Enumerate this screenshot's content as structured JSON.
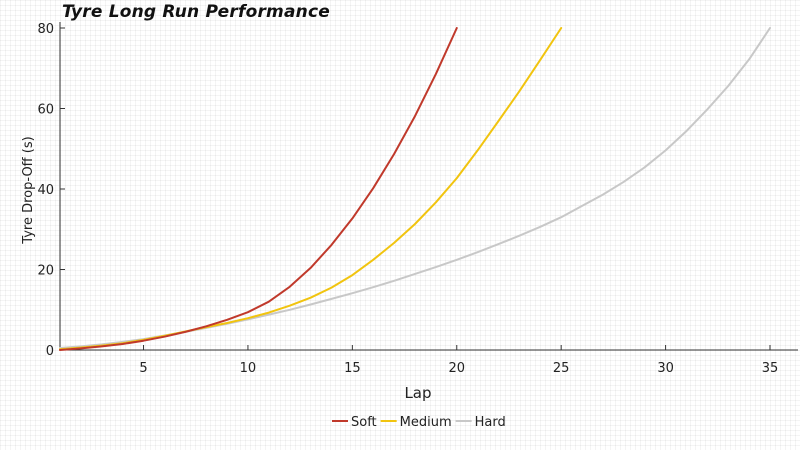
{
  "chart_data": {
    "type": "line",
    "title": "Tyre Long Run Performance",
    "xlabel": "Lap",
    "ylabel": "Tyre Drop-Off (s)",
    "xlim": [
      1,
      37
    ],
    "ylim": [
      0,
      80
    ],
    "xticks": [
      5,
      10,
      15,
      20,
      25,
      30,
      35
    ],
    "yticks": [
      0,
      20,
      40,
      60,
      80
    ],
    "legend": "bottom-center",
    "series": [
      {
        "name": "Soft",
        "color": "#c0392b",
        "x": [
          1,
          2,
          3,
          4,
          5,
          6,
          7,
          8,
          9,
          10,
          11,
          12,
          13,
          14,
          15,
          16,
          17,
          18,
          19,
          20
        ],
        "y": [
          0,
          0.4,
          0.9,
          1.5,
          2.3,
          3.3,
          4.5,
          5.9,
          7.5,
          9.4,
          12,
          15.7,
          20.4,
          26.1,
          32.7,
          40.2,
          48.7,
          58.1,
          68.6,
          80
        ]
      },
      {
        "name": "Medium",
        "color": "#f1c40f",
        "x": [
          1,
          2,
          3,
          4,
          5,
          6,
          7,
          8,
          9,
          10,
          11,
          12,
          13,
          14,
          15,
          16,
          17,
          18,
          19,
          20,
          21,
          22,
          23,
          24,
          25
        ],
        "y": [
          0.2,
          0.6,
          1.1,
          1.7,
          2.5,
          3.5,
          4.6,
          5.7,
          6.7,
          7.9,
          9.3,
          11,
          13,
          15.5,
          18.6,
          22.4,
          26.6,
          31.3,
          36.7,
          42.7,
          49.6,
          56.9,
          64.3,
          72.1,
          80
        ]
      },
      {
        "name": "Hard",
        "color": "#c8c8c8",
        "x": [
          1,
          2,
          3,
          4,
          5,
          6,
          7,
          8,
          9,
          10,
          11,
          12,
          13,
          14,
          15,
          16,
          17,
          18,
          19,
          20,
          21,
          22,
          23,
          24,
          25,
          26,
          27,
          28,
          29,
          30,
          31,
          32,
          33,
          34,
          35
        ],
        "y": [
          0.5,
          0.9,
          1.4,
          2,
          2.7,
          3.6,
          4.5,
          5.5,
          6.5,
          7.6,
          8.8,
          10,
          11.3,
          12.7,
          14.1,
          15.6,
          17.2,
          18.9,
          20.6,
          22.4,
          24.3,
          26.3,
          28.4,
          30.6,
          33,
          35.8,
          38.6,
          41.8,
          45.4,
          49.6,
          54.4,
          59.8,
          65.6,
          72.2,
          80
        ]
      }
    ]
  }
}
